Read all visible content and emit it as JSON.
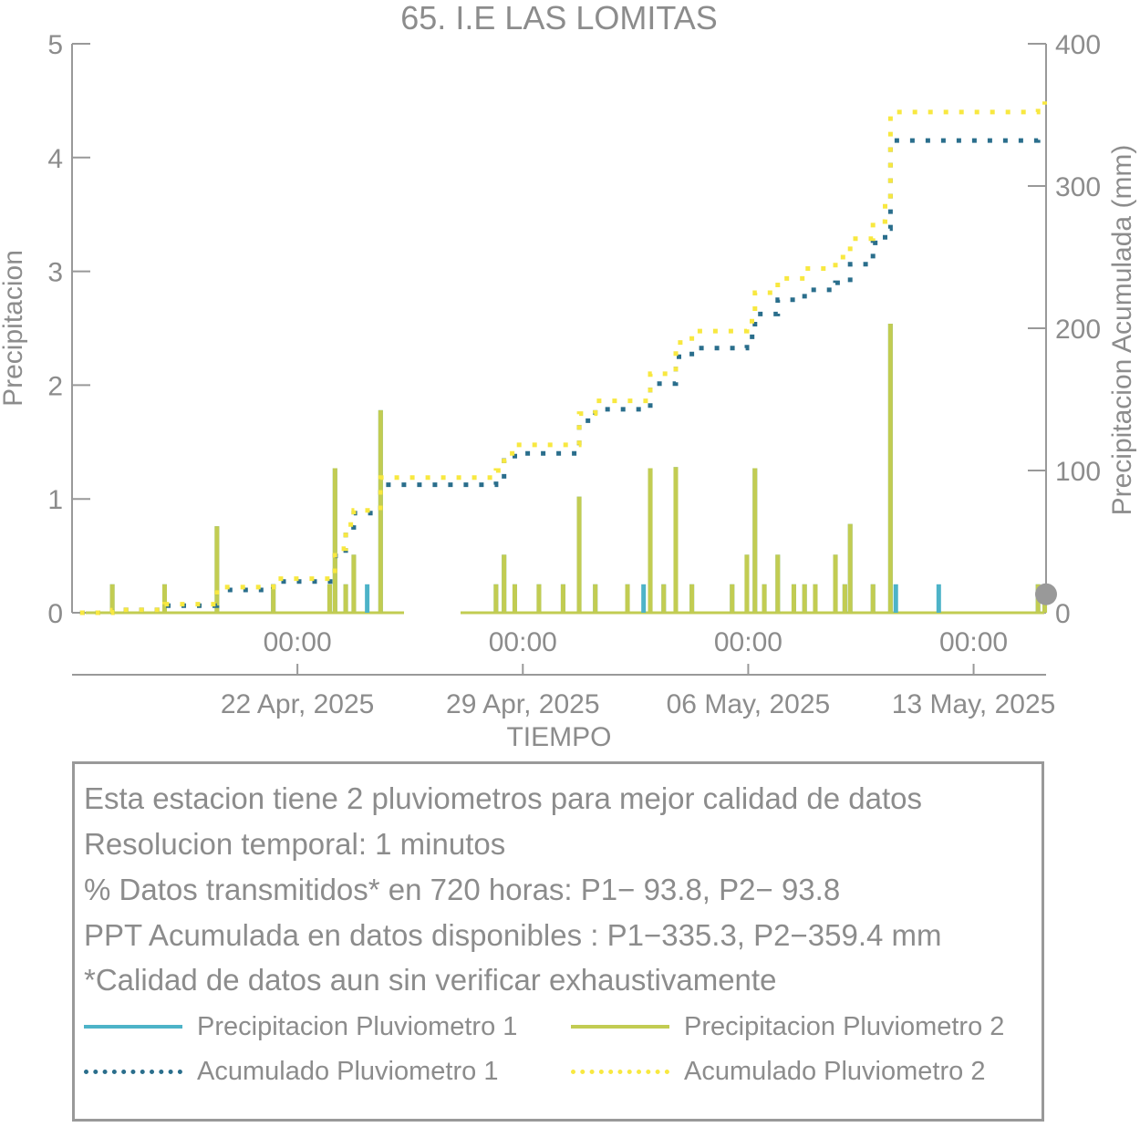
{
  "chart_data": {
    "type": "bar+line (dual y-axis time series)",
    "title": "65. I.E LAS LOMITAS",
    "xlabel": "TIEMPO",
    "ylabel_left": "Precipitacion",
    "ylabel_right": "Precipitacion Acumulada (mm)",
    "ylim_left": [
      0,
      5
    ],
    "ylim_right": [
      0,
      400
    ],
    "yticks_left": [
      "0",
      "1",
      "2",
      "3",
      "4",
      "5"
    ],
    "yticks_right": [
      "0",
      "100",
      "200",
      "300",
      "400"
    ],
    "xlim_days": [
      "2025-04-15 00:00",
      "2025-05-15 06:00"
    ],
    "xticks_time": [
      "00:00",
      "00:00",
      "00:00",
      "00:00"
    ],
    "xticks_date": [
      "22 Apr, 2025",
      "29 Apr, 2025",
      "06 May, 2025",
      "13 May, 2025"
    ],
    "xtick_dates": [
      "2025-04-22",
      "2025-04-29",
      "2025-05-06",
      "2025-05-13"
    ],
    "grid": false,
    "colors": {
      "p1_bar": "#4db3c8",
      "p2_bar": "#c2cc52",
      "p1_cum": "#2a6e8c",
      "p2_cum": "#f8e840",
      "axis": "#999999",
      "text": "#8c8c8c",
      "dot": "#999999"
    },
    "series": [
      {
        "name": "Precipitacion Pluviometro 1",
        "axis": "left",
        "style": "bars",
        "points": [
          [
            "2025-04-16 06:00",
            0.25
          ],
          [
            "2025-04-17 21:00",
            0.25
          ],
          [
            "2025-04-19 12:00",
            0.76
          ],
          [
            "2025-04-21 06:00",
            0.25
          ],
          [
            "2025-04-23 00:00",
            0.25
          ],
          [
            "2025-04-23 04:00",
            1.27
          ],
          [
            "2025-04-23 12:00",
            0.25
          ],
          [
            "2025-04-23 18:00",
            0.51
          ],
          [
            "2025-04-24 04:00",
            0.25
          ],
          [
            "2025-04-24 14:00",
            1.78
          ],
          [
            "2025-04-28 04:00",
            0.25
          ],
          [
            "2025-04-28 10:00",
            0.51
          ],
          [
            "2025-04-28 18:00",
            0.25
          ],
          [
            "2025-04-29 12:00",
            0.25
          ],
          [
            "2025-04-30 06:00",
            0.25
          ],
          [
            "2025-04-30 18:00",
            1.02
          ],
          [
            "2025-05-01 06:00",
            0.25
          ],
          [
            "2025-05-02 06:00",
            0.25
          ],
          [
            "2025-05-02 18:00",
            0.25
          ],
          [
            "2025-05-02 23:00",
            1.27
          ],
          [
            "2025-05-03 09:00",
            0.25
          ],
          [
            "2025-05-03 18:00",
            1.28
          ],
          [
            "2025-05-04 06:00",
            0.25
          ],
          [
            "2025-05-05 12:00",
            0.25
          ],
          [
            "2025-05-05 23:00",
            0.51
          ],
          [
            "2025-05-06 05:00",
            1.27
          ],
          [
            "2025-05-06 12:00",
            0.25
          ],
          [
            "2025-05-06 22:00",
            0.51
          ],
          [
            "2025-05-07 10:00",
            0.25
          ],
          [
            "2025-05-07 18:00",
            0.25
          ],
          [
            "2025-05-08 02:00",
            0.25
          ],
          [
            "2025-05-08 17:00",
            0.51
          ],
          [
            "2025-05-09 00:00",
            0.25
          ],
          [
            "2025-05-09 04:00",
            0.78
          ],
          [
            "2025-05-09 21:00",
            0.25
          ],
          [
            "2025-05-10 10:00",
            2.54
          ],
          [
            "2025-05-10 14:00",
            0.25
          ],
          [
            "2025-05-11 22:00",
            0.25
          ],
          [
            "2025-05-15 00:00",
            0.25
          ],
          [
            "2025-05-15 05:00",
            0.25
          ]
        ]
      },
      {
        "name": "Precipitacion Pluviometro 2",
        "axis": "left",
        "style": "bars",
        "points": [
          [
            "2025-04-16 06:00",
            0.25
          ],
          [
            "2025-04-17 21:00",
            0.25
          ],
          [
            "2025-04-19 12:00",
            0.76
          ],
          [
            "2025-04-21 06:00",
            0.25
          ],
          [
            "2025-04-23 00:00",
            0.25
          ],
          [
            "2025-04-23 04:00",
            1.27
          ],
          [
            "2025-04-23 12:00",
            0.25
          ],
          [
            "2025-04-23 18:00",
            0.51
          ],
          [
            "2025-04-24 14:00",
            1.78
          ],
          [
            "2025-04-28 04:00",
            0.25
          ],
          [
            "2025-04-28 10:00",
            0.51
          ],
          [
            "2025-04-28 18:00",
            0.25
          ],
          [
            "2025-04-29 12:00",
            0.25
          ],
          [
            "2025-04-30 06:00",
            0.25
          ],
          [
            "2025-04-30 18:00",
            1.02
          ],
          [
            "2025-05-01 06:00",
            0.25
          ],
          [
            "2025-05-02 06:00",
            0.25
          ],
          [
            "2025-05-02 23:00",
            1.27
          ],
          [
            "2025-05-03 09:00",
            0.25
          ],
          [
            "2025-05-03 18:00",
            1.28
          ],
          [
            "2025-05-04 06:00",
            0.25
          ],
          [
            "2025-05-05 12:00",
            0.25
          ],
          [
            "2025-05-05 23:00",
            0.51
          ],
          [
            "2025-05-06 05:00",
            1.27
          ],
          [
            "2025-05-06 12:00",
            0.25
          ],
          [
            "2025-05-06 22:00",
            0.51
          ],
          [
            "2025-05-07 10:00",
            0.25
          ],
          [
            "2025-05-07 18:00",
            0.25
          ],
          [
            "2025-05-08 02:00",
            0.25
          ],
          [
            "2025-05-08 17:00",
            0.51
          ],
          [
            "2025-05-09 00:00",
            0.25
          ],
          [
            "2025-05-09 04:00",
            0.78
          ],
          [
            "2025-05-09 21:00",
            0.25
          ],
          [
            "2025-05-10 10:00",
            2.54
          ],
          [
            "2025-05-15 00:00",
            0.25
          ],
          [
            "2025-05-15 05:00",
            0.25
          ]
        ]
      },
      {
        "name": "Acumulado Pluviometro 1",
        "axis": "right",
        "style": "dotted-step",
        "points": [
          [
            "2025-04-15 06:00",
            0
          ],
          [
            "2025-04-16 06:00",
            2
          ],
          [
            "2025-04-17 21:00",
            5
          ],
          [
            "2025-04-19 12:00",
            16
          ],
          [
            "2025-04-21 06:00",
            22
          ],
          [
            "2025-04-23 04:00",
            40
          ],
          [
            "2025-04-23 12:00",
            60
          ],
          [
            "2025-04-23 18:00",
            70
          ],
          [
            "2025-04-24 14:00",
            90
          ],
          [
            "2025-04-28 04:00",
            93
          ],
          [
            "2025-04-28 10:00",
            107
          ],
          [
            "2025-04-28 18:00",
            112
          ],
          [
            "2025-04-30 18:00",
            135
          ],
          [
            "2025-05-01 06:00",
            143
          ],
          [
            "2025-05-02 23:00",
            161
          ],
          [
            "2025-05-03 18:00",
            180
          ],
          [
            "2025-05-04 06:00",
            186
          ],
          [
            "2025-05-05 23:00",
            194
          ],
          [
            "2025-05-06 05:00",
            210
          ],
          [
            "2025-05-06 22:00",
            220
          ],
          [
            "2025-05-07 18:00",
            227
          ],
          [
            "2025-05-08 17:00",
            232
          ],
          [
            "2025-05-09 04:00",
            245
          ],
          [
            "2025-05-09 21:00",
            260
          ],
          [
            "2025-05-10 06:00",
            270
          ],
          [
            "2025-05-10 10:00",
            332
          ],
          [
            "2025-05-15 00:00",
            333
          ],
          [
            "2025-05-15 05:00",
            335.3
          ]
        ]
      },
      {
        "name": "Acumulado Pluviometro 2",
        "axis": "right",
        "style": "dotted-step",
        "points": [
          [
            "2025-04-15 06:00",
            0
          ],
          [
            "2025-04-16 06:00",
            2
          ],
          [
            "2025-04-17 21:00",
            6
          ],
          [
            "2025-04-19 12:00",
            18
          ],
          [
            "2025-04-21 06:00",
            24
          ],
          [
            "2025-04-23 04:00",
            45
          ],
          [
            "2025-04-23 12:00",
            62
          ],
          [
            "2025-04-23 18:00",
            72
          ],
          [
            "2025-04-24 14:00",
            95
          ],
          [
            "2025-04-28 04:00",
            100
          ],
          [
            "2025-04-28 10:00",
            112
          ],
          [
            "2025-04-28 18:00",
            118
          ],
          [
            "2025-04-30 18:00",
            140
          ],
          [
            "2025-05-01 06:00",
            149
          ],
          [
            "2025-05-02 23:00",
            168
          ],
          [
            "2025-05-03 18:00",
            190
          ],
          [
            "2025-05-04 06:00",
            198
          ],
          [
            "2025-05-05 23:00",
            205
          ],
          [
            "2025-05-06 05:00",
            225
          ],
          [
            "2025-05-06 22:00",
            235
          ],
          [
            "2025-05-07 18:00",
            242
          ],
          [
            "2025-05-08 17:00",
            250
          ],
          [
            "2025-05-09 04:00",
            263
          ],
          [
            "2025-05-09 21:00",
            275
          ],
          [
            "2025-05-10 06:00",
            290
          ],
          [
            "2025-05-10 10:00",
            352
          ],
          [
            "2025-05-15 00:00",
            357
          ],
          [
            "2025-05-15 05:00",
            359.4
          ]
        ]
      }
    ],
    "end_marker": {
      "axis": "right",
      "value": 13,
      "time": "2025-05-15 06:00"
    }
  },
  "info": {
    "lines": [
      "Esta estacion tiene 2 pluviometros para mejor calidad de datos",
      "Resolucion temporal: 1 minutos",
      "% Datos transmitidos* en 720 horas: P1− 93.8, P2− 93.8",
      "PPT Acumulada en datos disponibles : P1−335.3, P2−359.4 mm",
      "*Calidad de datos aun sin verificar exhaustivamente"
    ],
    "legend": [
      "Precipitacion Pluviometro 1",
      "Precipitacion Pluviometro 2",
      "Acumulado Pluviometro 1",
      "Acumulado Pluviometro 2"
    ]
  }
}
